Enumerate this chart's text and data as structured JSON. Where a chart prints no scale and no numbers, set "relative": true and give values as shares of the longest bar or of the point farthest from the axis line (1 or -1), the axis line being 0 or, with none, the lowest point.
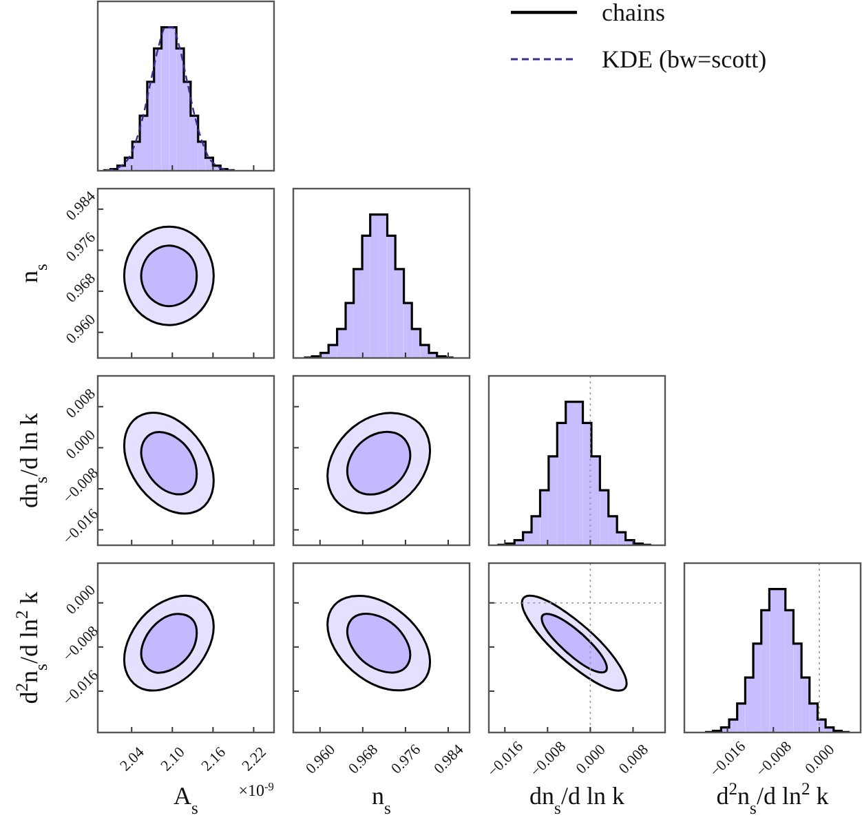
{
  "chart_data": [
    {
      "type": "histogram",
      "relative": true,
      "xlim": [
        1.99,
        2.25
      ],
      "xticks": [
        2.04,
        2.1,
        2.16,
        2.22
      ],
      "tick_labels": false,
      "legend": "right",
      "bins": [
        1.998,
        2.009,
        2.019,
        2.03,
        2.041,
        2.052,
        2.063,
        2.073,
        2.084,
        2.095,
        2.106,
        2.117,
        2.127,
        2.138,
        2.149,
        2.16,
        2.171,
        2.181,
        2.192
      ],
      "series": [
        {
          "color": "#c8bdff",
          "values": [
            0.003,
            0.011,
            0.035,
            0.091,
            0.202,
            0.383,
            0.619,
            0.852,
            1,
            1,
            0.852,
            0.619,
            0.383,
            0.202,
            0.091,
            0.035,
            0.011,
            0.003
          ]
        },
        {
          "name": "chains",
          "type": "step",
          "color": "#000000",
          "x": [
            1.998,
            2.009,
            2.019,
            2.03,
            2.041,
            2.052,
            2.063,
            2.073,
            2.084,
            2.095,
            2.106,
            2.117,
            2.127,
            2.138,
            2.149,
            2.16,
            2.171,
            2.181,
            2.192
          ],
          "values": [
            0.003,
            0.011,
            0.035,
            0.091,
            0.202,
            0.383,
            0.619,
            0.852,
            1,
            1,
            0.852,
            0.619,
            0.383,
            0.202,
            0.091,
            0.035,
            0.011,
            0.003,
            0.003
          ]
        },
        {
          "name": "KDE (bw=scott)",
          "type": "line",
          "line_style": "dashed",
          "color": "#3c2a8c",
          "x": [
            2.003,
            2.014,
            2.025,
            2.036,
            2.046,
            2.057,
            2.068,
            2.079,
            2.09,
            2.1,
            2.111,
            2.122,
            2.133,
            2.144,
            2.154,
            2.165,
            2.176,
            2.187
          ],
          "values": [
            0.003,
            0.011,
            0.035,
            0.091,
            0.202,
            0.383,
            0.619,
            0.852,
            1,
            1,
            0.852,
            0.619,
            0.383,
            0.202,
            0.091,
            0.035,
            0.011,
            0.003
          ]
        }
      ]
    },
    {
      "type": "area",
      "ylabel": "n$_{s}$",
      "xlim": [
        1.99,
        2.25
      ],
      "xticks": [
        2.04,
        2.1,
        2.16,
        2.22
      ],
      "ylim": [
        0.955,
        0.988
      ],
      "yticks": [
        {
          "value": 0.96,
          "label": "0.960"
        },
        0.968,
        0.976,
        0.984
      ],
      "tick_labels": "y",
      "series": [
        {
          "color": "#e6e0ff",
          "x": [
            2.161,
            2.152,
            2.128,
            2.095,
            2.062,
            2.038,
            2.029,
            2.038,
            2.062,
            2.095,
            2.128,
            2.152
          ],
          "values": [
            0.971,
            0.9758,
            0.9793,
            0.9806,
            0.9793,
            0.9758,
            0.971,
            0.9662,
            0.9627,
            0.9614,
            0.9627,
            0.9662
          ]
        },
        {
          "color": "#c4b8ff",
          "x": [
            2.136,
            2.131,
            2.116,
            2.095,
            2.075,
            2.06,
            2.054,
            2.06,
            2.075,
            2.095,
            2.116,
            2.131
          ],
          "values": [
            0.971,
            0.974,
            0.9761,
            0.9769,
            0.9761,
            0.974,
            0.971,
            0.968,
            0.9659,
            0.9651,
            0.9659,
            0.968
          ]
        }
      ]
    },
    {
      "type": "histogram",
      "relative": true,
      "xlim": [
        0.955,
        0.988
      ],
      "xticks": [
        0.96,
        0.968,
        0.976,
        0.984
      ],
      "tick_labels": false,
      "bins": [
        0.957,
        0.9585,
        0.9601,
        0.9616,
        0.9632,
        0.9648,
        0.9663,
        0.9679,
        0.9694,
        0.971,
        0.9726,
        0.9741,
        0.9757,
        0.9772,
        0.9788,
        0.9804,
        0.9819,
        0.9835,
        0.985
      ],
      "series": [
        {
          "color": "#c8bdff",
          "values": [
            0.003,
            0.011,
            0.035,
            0.091,
            0.202,
            0.383,
            0.619,
            0.852,
            1,
            1,
            0.852,
            0.619,
            0.383,
            0.202,
            0.091,
            0.035,
            0.011,
            0.003
          ]
        },
        {
          "type": "step",
          "color": "#000000",
          "x": [
            0.957,
            0.9585,
            0.9601,
            0.9616,
            0.9632,
            0.9648,
            0.9663,
            0.9679,
            0.9694,
            0.971,
            0.9726,
            0.9741,
            0.9757,
            0.9772,
            0.9788,
            0.9804,
            0.9819,
            0.9835,
            0.985
          ],
          "values": [
            0.003,
            0.011,
            0.035,
            0.091,
            0.202,
            0.383,
            0.619,
            0.852,
            1,
            1,
            0.852,
            0.619,
            0.383,
            0.202,
            0.091,
            0.035,
            0.011,
            0.003,
            0.003
          ]
        }
      ]
    },
    {
      "type": "area",
      "ylabel": "dn$_{s}$/d ln k",
      "xlim": [
        1.99,
        2.25
      ],
      "xticks": [
        2.04,
        2.1,
        2.16,
        2.22
      ],
      "ylim": [
        -0.019,
        0.014
      ],
      "yticks": [
        {
          "value": -0.016,
          "label": "−0.016"
        },
        {
          "value": -0.008,
          "label": "−0.008"
        },
        {
          "value": 0,
          "label": "0.000"
        },
        0.008
      ],
      "tick_labels": "y",
      "series": [
        {
          "color": "#e6e0ff",
          "x": [
            2.161,
            2.152,
            2.128,
            2.095,
            2.062,
            2.038,
            2.029,
            2.038,
            2.062,
            2.095,
            2.128,
            2.152
          ],
          "values": [
            -0.0064,
            -0.0014,
            0.0032,
            0.0062,
            0.0067,
            0.0046,
            0.0004,
            -0.0046,
            -0.0092,
            -0.0122,
            -0.0127,
            -0.0106
          ]
        },
        {
          "color": "#c4b8ff",
          "x": [
            2.136,
            2.131,
            2.116,
            2.095,
            2.075,
            2.06,
            2.054,
            2.06,
            2.075,
            2.095,
            2.116,
            2.131
          ],
          "values": [
            -0.0051,
            -0.002,
            0.0009,
            0.0027,
            0.003,
            0.0017,
            -0.0009,
            -0.004,
            -0.0069,
            -0.0087,
            -0.009,
            -0.0077
          ]
        }
      ]
    },
    {
      "type": "area",
      "xlim": [
        0.955,
        0.988
      ],
      "xticks": [
        0.96,
        0.968,
        0.976,
        0.984
      ],
      "ylim": [
        -0.019,
        0.014
      ],
      "yticks": [
        -0.016,
        -0.008,
        0,
        0.008
      ],
      "tick_labels": false,
      "series": [
        {
          "color": "#e6e0ff",
          "x": [
            0.9806,
            0.9793,
            0.9758,
            0.971,
            0.9662,
            0.9627,
            0.9614,
            0.9627,
            0.9662,
            0.971,
            0.9758,
            0.9793
          ],
          "values": [
            -0.0006,
            0.0039,
            0.0064,
            0.0065,
            0.004,
            -0.0004,
            -0.0055,
            -0.0099,
            -0.0124,
            -0.0125,
            -0.01,
            -0.0056
          ]
        },
        {
          "color": "#c4b8ff",
          "x": [
            0.9769,
            0.9761,
            0.974,
            0.971,
            0.968,
            0.9659,
            0.9651,
            0.9659,
            0.968,
            0.971,
            0.974,
            0.9761
          ],
          "values": [
            -0.0015,
            0.0013,
            0.0029,
            0.0029,
            0.0013,
            -0.0014,
            -0.0045,
            -0.0073,
            -0.0089,
            -0.0089,
            -0.0073,
            -0.0046
          ]
        }
      ]
    },
    {
      "type": "histogram",
      "relative": true,
      "xlim": [
        -0.019,
        0.014
      ],
      "xticks": [
        -0.016,
        -0.008,
        0,
        0.008
      ],
      "tick_labels": false,
      "ref_lines": [
        {
          "axis": "x",
          "value": 0,
          "color": "#999999",
          "line_style": "dotted"
        }
      ],
      "bins": [
        -0.0174,
        -0.0158,
        -0.0142,
        -0.0126,
        -0.011,
        -0.0094,
        -0.0078,
        -0.0062,
        -0.0046,
        -0.003,
        -0.0014,
        0.0002,
        0.0018,
        0.0034,
        0.005,
        0.0066,
        0.0082,
        0.0098,
        0.0114
      ],
      "series": [
        {
          "color": "#c8bdff",
          "values": [
            0.003,
            0.011,
            0.035,
            0.091,
            0.202,
            0.383,
            0.619,
            0.852,
            1,
            1,
            0.852,
            0.619,
            0.383,
            0.202,
            0.091,
            0.035,
            0.011,
            0.003
          ]
        },
        {
          "type": "step",
          "color": "#000000",
          "x": [
            -0.0174,
            -0.0158,
            -0.0142,
            -0.0126,
            -0.011,
            -0.0094,
            -0.0078,
            -0.0062,
            -0.0046,
            -0.003,
            -0.0014,
            0.0002,
            0.0018,
            0.0034,
            0.005,
            0.0066,
            0.0082,
            0.0098,
            0.0114
          ],
          "values": [
            0.003,
            0.011,
            0.035,
            0.091,
            0.202,
            0.383,
            0.619,
            0.852,
            1,
            1,
            0.852,
            0.619,
            0.383,
            0.202,
            0.091,
            0.035,
            0.011,
            0.003,
            0.003
          ]
        }
      ]
    },
    {
      "type": "area",
      "xlabel": "A$_{s}$",
      "ylabel": "d$^{2}$n$_{s}$/d ln$^{2}$ k",
      "annotations": [
        "×10$^{-9}$"
      ],
      "xlim": [
        1.99,
        2.25
      ],
      "xticks": [
        2.04,
        {
          "value": 2.1,
          "label": "2.10"
        },
        2.16,
        2.22
      ],
      "ylim": [
        -0.0235,
        0.0072
      ],
      "yticks": [
        {
          "value": -0.016,
          "label": "−0.016"
        },
        {
          "value": -0.008,
          "label": "−0.008"
        },
        {
          "value": 0,
          "label": "0.000"
        }
      ],
      "series": [
        {
          "color": "#e6e0ff",
          "x": [
            2.161,
            2.152,
            2.128,
            2.095,
            2.062,
            2.038,
            2.029,
            2.038,
            2.062,
            2.095,
            2.128,
            2.152
          ],
          "values": [
            -0.0043,
            -0.0007,
            0.0012,
            0.0007,
            -0.0018,
            -0.0059,
            -0.0103,
            -0.0139,
            -0.0158,
            -0.0153,
            -0.0128,
            -0.0087
          ]
        },
        {
          "color": "#c4b8ff",
          "x": [
            2.136,
            2.131,
            2.116,
            2.095,
            2.075,
            2.06,
            2.054,
            2.06,
            2.075,
            2.095,
            2.116,
            2.131
          ],
          "values": [
            -0.0054,
            -0.0032,
            -0.0021,
            -0.0023,
            -0.0039,
            -0.0064,
            -0.0092,
            -0.0114,
            -0.0126,
            -0.0123,
            -0.0107,
            -0.0082
          ]
        }
      ]
    },
    {
      "type": "area",
      "xlabel": "n$_{s}$",
      "xlim": [
        0.955,
        0.988
      ],
      "xticks": [
        {
          "value": 0.96,
          "label": "0.960"
        },
        0.968,
        0.976,
        0.984
      ],
      "ylim": [
        -0.0235,
        0.0072
      ],
      "yticks": [
        -0.016,
        -0.008,
        0
      ],
      "tick_labels": "x",
      "series": [
        {
          "color": "#e6e0ff",
          "x": [
            0.9806,
            0.9793,
            0.9758,
            0.971,
            0.9662,
            0.9627,
            0.9614,
            0.9627,
            0.9662,
            0.971,
            0.9758,
            0.9793
          ],
          "values": [
            -0.0107,
            -0.0063,
            -0.0022,
            0.0006,
            0.0012,
            -0.0004,
            -0.0039,
            -0.0083,
            -0.0124,
            -0.0152,
            -0.0158,
            -0.0142
          ]
        },
        {
          "color": "#c4b8ff",
          "x": [
            0.9769,
            0.9761,
            0.974,
            0.971,
            0.968,
            0.9659,
            0.9651,
            0.9659,
            0.968,
            0.971,
            0.974,
            0.9761
          ],
          "values": [
            -0.0094,
            -0.0067,
            -0.0041,
            -0.0024,
            -0.002,
            -0.003,
            -0.0052,
            -0.0079,
            -0.0105,
            -0.0122,
            -0.0126,
            -0.0116
          ]
        }
      ]
    },
    {
      "type": "area",
      "xlabel": "dn$_{s}$/d ln k",
      "xlim": [
        -0.019,
        0.014
      ],
      "xticks": [
        {
          "value": -0.016,
          "label": "−0.016"
        },
        {
          "value": -0.008,
          "label": "−0.008"
        },
        {
          "value": 0,
          "label": "0.000"
        },
        0.008
      ],
      "ylim": [
        -0.0235,
        0.0072
      ],
      "yticks": [
        -0.016,
        -0.008,
        0
      ],
      "tick_labels": "x",
      "ref_lines": [
        {
          "axis": "x",
          "value": 0,
          "color": "#999999",
          "line_style": "dotted"
        },
        {
          "axis": "y",
          "value": 0,
          "color": "#999999",
          "line_style": "dotted"
        }
      ],
      "series": [
        {
          "color": "#e6e0ff",
          "x": [
            0.0068,
            0.0055,
            0.0019,
            -0.003,
            -0.0079,
            -0.0115,
            -0.0128,
            -0.0115,
            -0.0079,
            -0.003,
            0.0019,
            0.0055
          ],
          "values": [
            -0.0146,
            -0.0114,
            -0.007,
            -0.0028,
            0.0003,
            0.0013,
            0,
            -0.0032,
            -0.0076,
            -0.0118,
            -0.0149,
            -0.0159
          ]
        },
        {
          "color": "#c4b8ff",
          "x": [
            0.0031,
            0.0023,
            0,
            -0.003,
            -0.006,
            -0.0083,
            -0.0091,
            -0.0083,
            -0.006,
            -0.003,
            0,
            0.0023
          ],
          "values": [
            -0.0118,
            -0.0098,
            -0.0071,
            -0.0045,
            -0.0026,
            -0.002,
            -0.0028,
            -0.0048,
            -0.0075,
            -0.0101,
            -0.012,
            -0.0126
          ]
        }
      ]
    },
    {
      "type": "histogram",
      "relative": true,
      "xlabel": "d$^{2}$n$_{s}$/d ln$^{2}$ k",
      "xlim": [
        -0.0235,
        0.0072
      ],
      "xticks": [
        {
          "value": -0.016,
          "label": "−0.016"
        },
        {
          "value": -0.008,
          "label": "−0.008"
        },
        {
          "value": 0,
          "label": "0.000"
        }
      ],
      "tick_labels": "x",
      "ref_lines": [
        {
          "axis": "x",
          "value": 0,
          "color": "#999999",
          "line_style": "dotted"
        }
      ],
      "bins": [
        -0.0199,
        -0.0185,
        -0.0171,
        -0.0157,
        -0.0143,
        -0.0129,
        -0.0115,
        -0.0101,
        -0.0087,
        -0.0073,
        -0.0059,
        -0.0045,
        -0.0031,
        -0.0017,
        -0.0003,
        0.0011,
        0.0025,
        0.0039,
        0.0053
      ],
      "series": [
        {
          "color": "#c8bdff",
          "values": [
            0.003,
            0.011,
            0.035,
            0.091,
            0.202,
            0.383,
            0.619,
            0.852,
            1,
            1,
            0.852,
            0.619,
            0.383,
            0.202,
            0.091,
            0.035,
            0.011,
            0.003
          ]
        },
        {
          "type": "step",
          "color": "#000000",
          "x": [
            -0.0199,
            -0.0185,
            -0.0171,
            -0.0157,
            -0.0143,
            -0.0129,
            -0.0115,
            -0.0101,
            -0.0087,
            -0.0073,
            -0.0059,
            -0.0045,
            -0.0031,
            -0.0017,
            -0.0003,
            0.0011,
            0.0025,
            0.0039,
            0.0053
          ],
          "values": [
            0.003,
            0.011,
            0.035,
            0.091,
            0.202,
            0.383,
            0.619,
            0.852,
            1,
            1,
            0.852,
            0.619,
            0.383,
            0.202,
            0.091,
            0.035,
            0.011,
            0.003,
            0.003
          ]
        }
      ]
    }
  ]
}
